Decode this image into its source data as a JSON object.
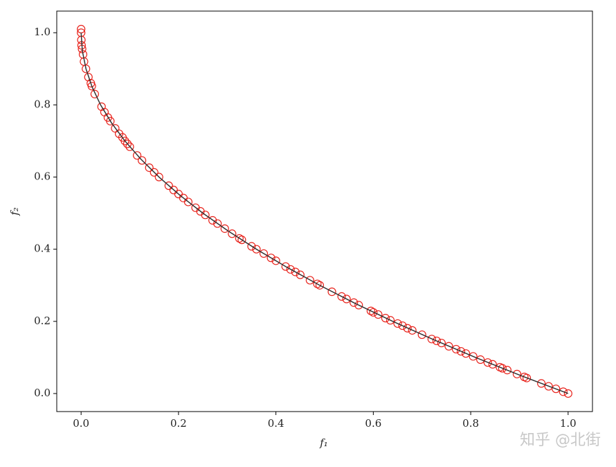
{
  "chart_data": {
    "type": "scatter",
    "xlabel": "f₁",
    "ylabel": "f₂",
    "watermark": "知乎 @北街",
    "xlim": [
      -0.05,
      1.05
    ],
    "ylim": [
      -0.05,
      1.06
    ],
    "xticks": [
      {
        "value": 0,
        "label": "0.0"
      },
      0.2,
      0.4,
      0.6,
      0.8,
      {
        "value": 1,
        "label": "1.0"
      }
    ],
    "yticks": [
      {
        "value": 0,
        "label": "0.0"
      },
      0.2,
      0.4,
      0.6,
      0.8,
      {
        "value": 1,
        "label": "1.0"
      }
    ],
    "series": [
      {
        "type": "scatter",
        "color": "#e8231c",
        "x": [
          0,
          0,
          0.0005,
          0.001,
          0.002,
          0.004,
          0.006,
          0.01,
          0.015,
          0.02,
          0.022,
          0.028,
          0.042,
          0.048,
          0.055,
          0.06,
          0.07,
          0.078,
          0.085,
          0.09,
          0.095,
          0.1,
          0.115,
          0.125,
          0.14,
          0.15,
          0.16,
          0.18,
          0.19,
          0.2,
          0.21,
          0.22,
          0.235,
          0.245,
          0.255,
          0.27,
          0.28,
          0.295,
          0.31,
          0.325,
          0.33,
          0.35,
          0.36,
          0.375,
          0.39,
          0.4,
          0.42,
          0.43,
          0.44,
          0.45,
          0.47,
          0.485,
          0.49,
          0.515,
          0.535,
          0.545,
          0.56,
          0.57,
          0.595,
          0.6,
          0.61,
          0.625,
          0.635,
          0.65,
          0.66,
          0.67,
          0.68,
          0.7,
          0.72,
          0.73,
          0.74,
          0.755,
          0.77,
          0.78,
          0.79,
          0.805,
          0.82,
          0.835,
          0.845,
          0.86,
          0.865,
          0.875,
          0.895,
          0.91,
          0.915,
          0.945,
          0.96,
          0.975,
          0.99,
          1.0
        ],
        "values": [
          1.01,
          1.0,
          0.98,
          0.965,
          0.955,
          0.94,
          0.92,
          0.9,
          0.877,
          0.86,
          0.852,
          0.83,
          0.795,
          0.78,
          0.765,
          0.755,
          0.735,
          0.72,
          0.71,
          0.7,
          0.692,
          0.684,
          0.66,
          0.646,
          0.626,
          0.613,
          0.6,
          0.576,
          0.564,
          0.553,
          0.542,
          0.531,
          0.515,
          0.505,
          0.495,
          0.48,
          0.471,
          0.457,
          0.443,
          0.43,
          0.426,
          0.408,
          0.4,
          0.388,
          0.376,
          0.368,
          0.352,
          0.344,
          0.337,
          0.329,
          0.314,
          0.304,
          0.3,
          0.282,
          0.269,
          0.262,
          0.252,
          0.245,
          0.229,
          0.225,
          0.219,
          0.209,
          0.203,
          0.194,
          0.188,
          0.181,
          0.175,
          0.163,
          0.151,
          0.146,
          0.14,
          0.131,
          0.123,
          0.117,
          0.111,
          0.103,
          0.094,
          0.086,
          0.081,
          0.073,
          0.07,
          0.065,
          0.054,
          0.046,
          0.043,
          0.028,
          0.02,
          0.013,
          0.005,
          0.0
        ]
      },
      {
        "type": "line",
        "color": "#333333",
        "x": [
          0,
          0.0025,
          0.01,
          0.0225,
          0.04,
          0.0625,
          0.09,
          0.1225,
          0.16,
          0.2025,
          0.25,
          0.3025,
          0.36,
          0.4225,
          0.49,
          0.5625,
          0.64,
          0.7225,
          0.81,
          0.9025,
          1.0
        ],
        "values": [
          1,
          0.95,
          0.9,
          0.85,
          0.8,
          0.75,
          0.7,
          0.65,
          0.6,
          0.55,
          0.5,
          0.45,
          0.4,
          0.35,
          0.3,
          0.25,
          0.2,
          0.15,
          0.1,
          0.05,
          0
        ]
      }
    ]
  }
}
